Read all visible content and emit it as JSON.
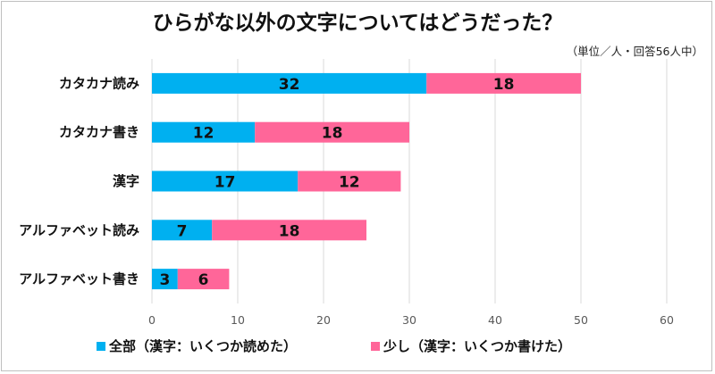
{
  "chart_data": {
    "type": "bar",
    "orientation": "horizontal",
    "stacked": true,
    "title": "ひらがな以外の文字についてはどうだった？",
    "unit_note": "（単位／人・回答56人中）",
    "categories": [
      "カタカナ読み",
      "カタカナ書き",
      "漢字",
      "アルファベット読み",
      "アルファベット書き"
    ],
    "series": [
      {
        "name": "全部（漢字：いくつか読めた）",
        "color": "#00b0f0",
        "values": [
          32,
          12,
          17,
          7,
          3
        ]
      },
      {
        "name": "少し（漢字：いくつか書けた）",
        "color": "#ff6699",
        "values": [
          18,
          18,
          12,
          18,
          6
        ]
      }
    ],
    "xlim": [
      0,
      60
    ],
    "xticks": [
      0,
      10,
      20,
      30,
      40,
      50,
      60
    ],
    "grid": true,
    "legend_position": "bottom"
  }
}
